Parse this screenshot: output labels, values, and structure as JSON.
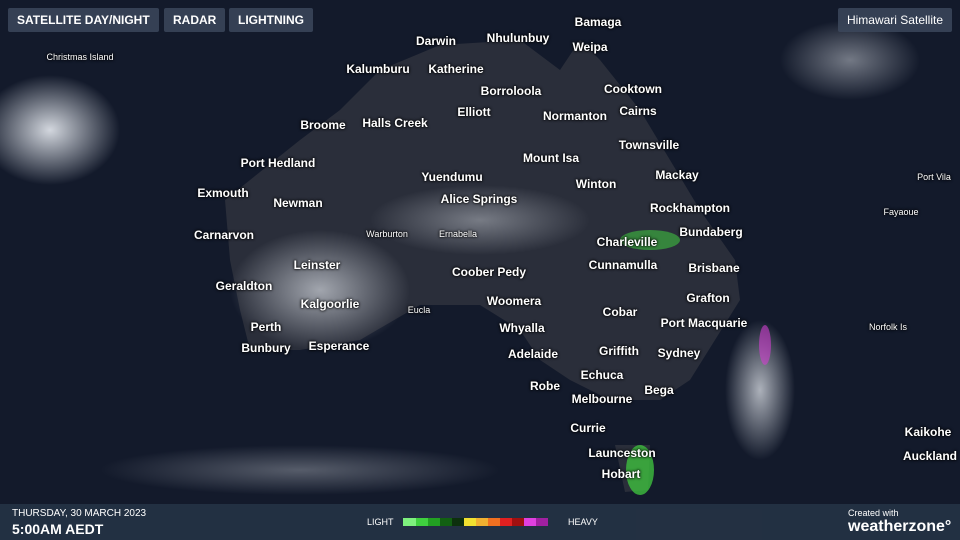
{
  "header": {
    "buttons": [
      "SATELLITE DAY/NIGHT",
      "RADAR",
      "LIGHTNING"
    ],
    "layer": "Himawari Satellite"
  },
  "map": {
    "cities": [
      "Bamaga",
      "Darwin",
      "Nhulunbuy",
      "Weipa",
      "Kalumburu",
      "Katherine",
      "Borroloola",
      "Cooktown",
      "Elliott",
      "Normanton",
      "Cairns",
      "Broome",
      "Halls Creek",
      "Townsville",
      "Mount Isa",
      "Port Hedland",
      "Mackay",
      "Yuendumu",
      "Winton",
      "Exmouth",
      "Newman",
      "Alice Springs",
      "Rockhampton",
      "Carnarvon",
      "Bundaberg",
      "Charleville",
      "Leinster",
      "Cunnamulla",
      "Brisbane",
      "Coober Pedy",
      "Geraldton",
      "Grafton",
      "Kalgoorlie",
      "Woomera",
      "Cobar",
      "Port Macquarie",
      "Perth",
      "Whyalla",
      "Bunbury",
      "Esperance",
      "Adelaide",
      "Griffith",
      "Sydney",
      "Echuca",
      "Robe",
      "Bega",
      "Melbourne",
      "Currie",
      "Launceston",
      "Hobart",
      "Kaikohe",
      "Auckland"
    ],
    "minor_places": [
      "Christmas Island",
      "Warburton",
      "Ernabella",
      "Eucla",
      "Port Vila",
      "Fayaoue",
      "Norfolk Is"
    ]
  },
  "footer": {
    "date": "THURSDAY, 30 MARCH 2023",
    "time": "5:00AM AEDT",
    "legend_low": "LIGHT",
    "legend_high": "HEAVY",
    "credit": "Created with",
    "brand": "weatherzone°"
  }
}
